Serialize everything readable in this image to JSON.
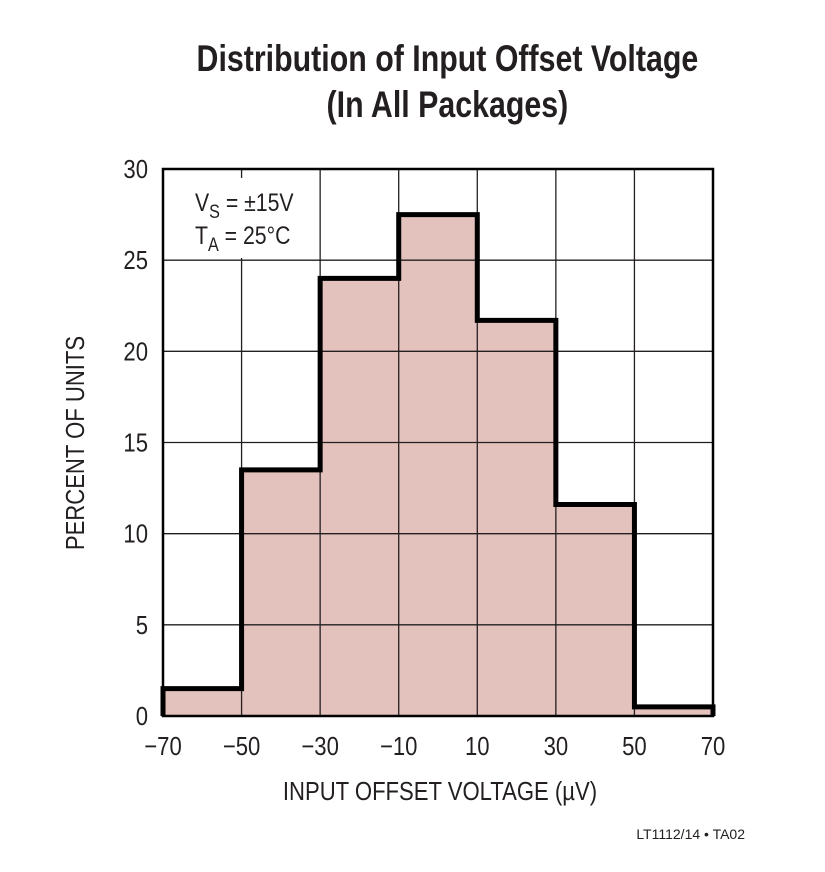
{
  "chart_data": {
    "type": "bar",
    "title": "Distribution of Input Offset Voltage",
    "subtitle": "(In All Packages)",
    "xlabel": "INPUT OFFSET VOLTAGE (µV)",
    "ylabel": "PERCENT OF UNITS",
    "bin_edges": [
      -70,
      -50,
      -30,
      -10,
      10,
      30,
      50,
      70
    ],
    "values": [
      1.5,
      13.5,
      24,
      27.5,
      21.7,
      11.6,
      0.5
    ],
    "xlim": [
      -70,
      70
    ],
    "ylim": [
      0,
      30
    ],
    "xticks": [
      "−70",
      "−50",
      "−30",
      "−10",
      "10",
      "30",
      "50",
      "70"
    ],
    "yticks": [
      "0",
      "5",
      "10",
      "15",
      "20",
      "25",
      "30"
    ],
    "grid": true,
    "annotation": {
      "line1_main": "V",
      "line1_sub": "S",
      "line1_rest": " = ±15V",
      "line2_main": "T",
      "line2_sub": "A",
      "line2_rest": " = 25°C"
    },
    "colors": {
      "fill": "#e3c1bc",
      "outline": "#000000",
      "grid": "#231f20"
    }
  },
  "footer": "LT1112/14 • TA02"
}
